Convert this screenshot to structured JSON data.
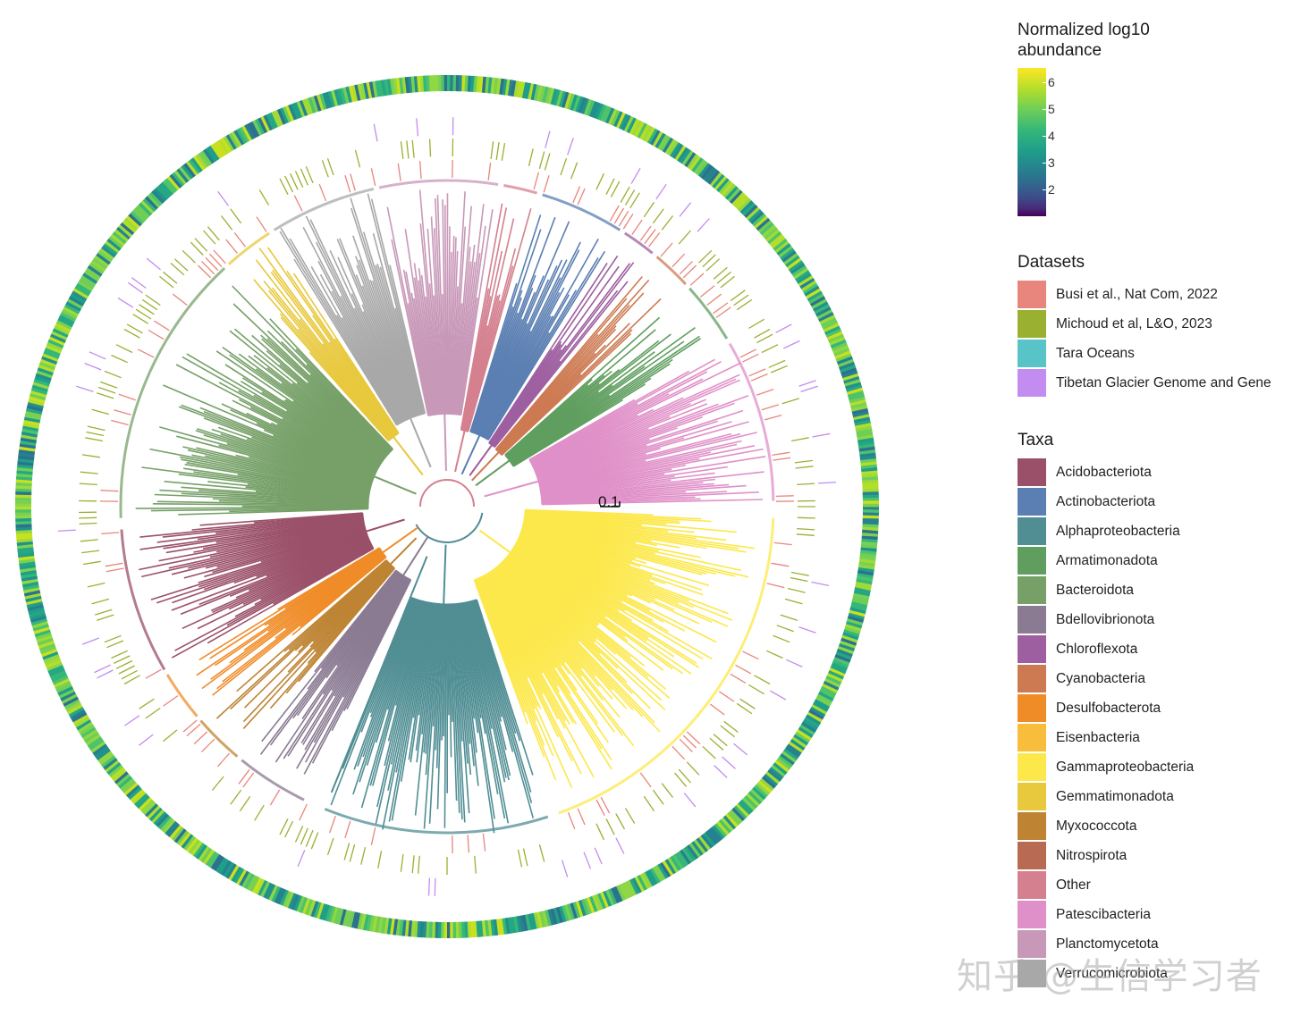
{
  "tree": {
    "scale_label": "0.1",
    "clades": [
      {
        "taxon": "Patescibacteria",
        "start": 330,
        "end": 359,
        "color": "#e090c8"
      },
      {
        "taxon": "Armatimonadota",
        "start": 318,
        "end": 329,
        "color": "#5f9e5f"
      },
      {
        "taxon": "Cyanobacteria",
        "start": 310,
        "end": 317,
        "color": "#cd7a52"
      },
      {
        "taxon": "Chloroflexota",
        "start": 303,
        "end": 309,
        "color": "#9e5fa0"
      },
      {
        "taxon": "Actinobacteriota",
        "start": 287,
        "end": 302,
        "color": "#5b7fb2"
      },
      {
        "taxon": "Other",
        "start": 280,
        "end": 286,
        "color": "#d4808f"
      },
      {
        "taxon": "Planctomycetota",
        "start": 258,
        "end": 279,
        "color": "#c898b8"
      },
      {
        "taxon": "Verrucomicrobiota",
        "start": 238,
        "end": 257,
        "color": "#a8a8a8"
      },
      {
        "taxon": "Gemmatimonadota",
        "start": 228,
        "end": 237,
        "color": "#e8c83c"
      },
      {
        "taxon": "Bacteroidota",
        "start": 178,
        "end": 227,
        "color": "#76a068"
      },
      {
        "taxon": "Acidobacteriota",
        "start": 150,
        "end": 176,
        "color": "#9a5068"
      },
      {
        "taxon": "Desulfobacterota",
        "start": 140,
        "end": 149,
        "color": "#f08c28"
      },
      {
        "taxon": "Myxococcota",
        "start": 130,
        "end": 139,
        "color": "#be8434"
      },
      {
        "taxon": "Bdellovibrionota",
        "start": 116,
        "end": 129,
        "color": "#8a7a92"
      },
      {
        "taxon": "Alphaproteobacteria",
        "start": 72,
        "end": 112,
        "color": "#508e94"
      },
      {
        "taxon": "Gammaproteobacteria",
        "start": 2,
        "end": 70,
        "color": "#fce84a"
      }
    ]
  },
  "legend": {
    "abundance": {
      "title": "Normalized log10\nabundance",
      "ticks": [
        "6",
        "5",
        "4",
        "3",
        "2"
      ]
    },
    "datasets": {
      "title": "Datasets",
      "items": [
        {
          "label": "Busi et al., Nat Com, 2022",
          "color": "#e8857c"
        },
        {
          "label": "Michoud et al, L&O, 2023",
          "color": "#9ab030"
        },
        {
          "label": "Tara Oceans",
          "color": "#58c4c8"
        },
        {
          "label": "Tibetan Glacier Genome and Gene",
          "color": "#c38cf0"
        }
      ]
    },
    "taxa": {
      "title": "Taxa",
      "items": [
        {
          "label": "Acidobacteriota",
          "color": "#9a5068"
        },
        {
          "label": "Actinobacteriota",
          "color": "#5b7fb2"
        },
        {
          "label": "Alphaproteobacteria",
          "color": "#508e94"
        },
        {
          "label": "Armatimonadota",
          "color": "#5f9e5f"
        },
        {
          "label": "Bacteroidota",
          "color": "#76a068"
        },
        {
          "label": "Bdellovibrionota",
          "color": "#8a7a92"
        },
        {
          "label": "Chloroflexota",
          "color": "#9e5fa0"
        },
        {
          "label": "Cyanobacteria",
          "color": "#cd7a52"
        },
        {
          "label": "Desulfobacterota",
          "color": "#f08c28"
        },
        {
          "label": "Eisenbacteria",
          "color": "#f8bd3a"
        },
        {
          "label": "Gammaproteobacteria",
          "color": "#fce84a"
        },
        {
          "label": "Gemmatimonadota",
          "color": "#e8c83c"
        },
        {
          "label": "Myxococcota",
          "color": "#be8434"
        },
        {
          "label": "Nitrospirota",
          "color": "#b86a52"
        },
        {
          "label": "Other",
          "color": "#d4808f"
        },
        {
          "label": "Patescibacteria",
          "color": "#e090c8"
        },
        {
          "label": "Planctomycetota",
          "color": "#c898b8"
        },
        {
          "label": "Verrucomicrobiota",
          "color": "#a8a8a8"
        }
      ]
    }
  },
  "watermark": "知乎 @生信学习者"
}
